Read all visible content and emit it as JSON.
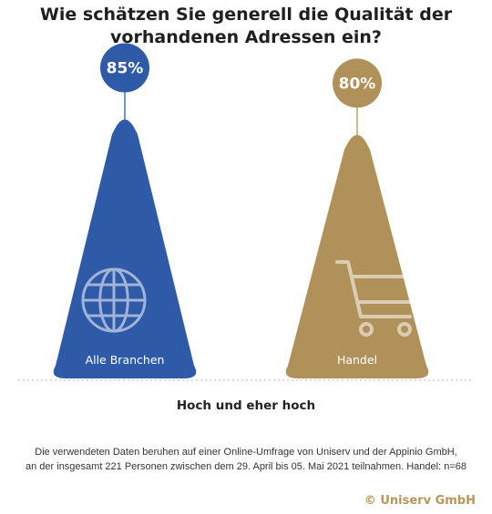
{
  "chart_data": {
    "type": "bar",
    "title_line1": "Wie schätzen Sie generell die Qualität der",
    "title_line2": "vorhandenen Adressen ein?",
    "categories": [
      "Alle Branchen",
      "Handel"
    ],
    "values": [
      85,
      80
    ],
    "value_labels": [
      "85%",
      "80%"
    ],
    "xlabel": "Hoch und eher hoch",
    "icons": [
      "globe-icon",
      "shopping-cart-icon"
    ],
    "colors": [
      "#2f5aa8",
      "#b0915a"
    ],
    "ylim": [
      0,
      100
    ]
  },
  "footnote": {
    "line1": "Die verwendeten Daten beruhen auf einer Online-Umfrage von Uniserv und der Appinio GmbH,",
    "line2": "an der insgesamt 221 Personen zwischen dem 29. April bis 05. Mai 2021 teilnahmen. Handel: n=68"
  },
  "copyright": "© Uniserv GmbH"
}
